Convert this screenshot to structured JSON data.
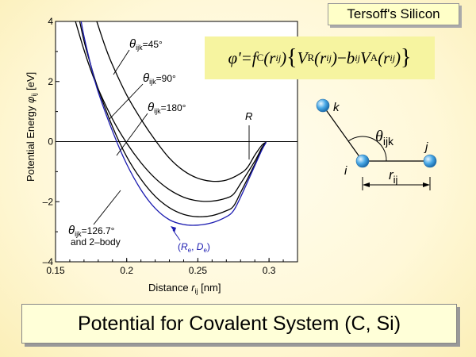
{
  "slide": {
    "label": "Tersoff's Silicon",
    "footer": "Potential for Covalent System (C, Si)"
  },
  "formula": {
    "phi": "φ'",
    "eq": " = ",
    "fc": "f",
    "fc_sub": "C",
    "rij": "(r",
    "ij": "ij",
    "open": ")",
    "brace_open": "{",
    "V": "V",
    "VR_sub": "R",
    "minus": " − ",
    "b": "b",
    "VA_sub": "A",
    "brace_close": "}"
  },
  "colors": {
    "curve": "#000000",
    "curve_2body": "#1a1ab0",
    "atom": "#49a9e6",
    "label_blue": "#1a1ab0"
  },
  "chart_data": {
    "type": "line",
    "xlabel": "Distance r_ij [nm]",
    "xlabel_main": "Distance ",
    "xlabel_var": "r",
    "xlabel_sub": "ij",
    "xlabel_unit": " [nm]",
    "ylabel": "Potential Energy φij [eV]",
    "ylabel_main": "Potential Energy  ",
    "ylabel_var": "φ",
    "ylabel_sub": "ij",
    "ylabel_unit": " [eV]",
    "xlim": [
      0.15,
      0.32
    ],
    "ylim": [
      -4,
      4
    ],
    "xticks": [
      0.15,
      0.2,
      0.25,
      0.3
    ],
    "xtick_labels": [
      "0.15",
      "0.2",
      "0.25",
      "0.3"
    ],
    "yticks": [
      4,
      2,
      0,
      -2,
      -4
    ],
    "ytick_labels": [
      "4",
      "2",
      "0",
      "–2",
      "–4"
    ],
    "series": [
      {
        "name": "θijk=45°",
        "x": [
          0.179,
          0.185,
          0.19,
          0.2,
          0.21,
          0.22,
          0.23,
          0.24,
          0.25,
          0.26,
          0.27,
          0.28,
          0.285,
          0.29,
          0.295,
          0.298
        ],
        "y": [
          4.0,
          3.15,
          2.55,
          1.55,
          0.75,
          0.05,
          -0.55,
          -0.97,
          -1.22,
          -1.32,
          -1.28,
          -1.06,
          -0.85,
          -0.45,
          -0.12,
          -0.02
        ]
      },
      {
        "name": "θijk=90°",
        "x": [
          0.164,
          0.17,
          0.175,
          0.18,
          0.19,
          0.2,
          0.21,
          0.22,
          0.23,
          0.24,
          0.25,
          0.26,
          0.27,
          0.275,
          0.28,
          0.29,
          0.295,
          0.298
        ],
        "y": [
          4.0,
          3.05,
          2.35,
          1.75,
          0.75,
          -0.05,
          -0.7,
          -1.22,
          -1.6,
          -1.85,
          -1.97,
          -1.98,
          -1.88,
          -1.75,
          -1.4,
          -0.65,
          -0.2,
          -0.02
        ]
      },
      {
        "name": "θijk=180°",
        "x": [
          0.167,
          0.17,
          0.175,
          0.18,
          0.19,
          0.2,
          0.21,
          0.22,
          0.23,
          0.24,
          0.25,
          0.26,
          0.27,
          0.275,
          0.28,
          0.29,
          0.295,
          0.298
        ],
        "y": [
          4.0,
          3.35,
          2.5,
          1.75,
          0.5,
          -0.5,
          -1.25,
          -1.82,
          -2.2,
          -2.42,
          -2.5,
          -2.46,
          -2.3,
          -2.15,
          -1.7,
          -0.75,
          -0.25,
          -0.02
        ]
      },
      {
        "name": "θijk=126.7° and 2–body",
        "x": [
          0.168,
          0.17,
          0.175,
          0.18,
          0.19,
          0.2,
          0.21,
          0.22,
          0.23,
          0.24,
          0.25,
          0.26,
          0.27,
          0.275,
          0.28,
          0.29,
          0.295,
          0.298
        ],
        "y": [
          4.0,
          3.5,
          2.5,
          1.65,
          0.35,
          -0.75,
          -1.6,
          -2.22,
          -2.6,
          -2.76,
          -2.78,
          -2.7,
          -2.5,
          -2.3,
          -1.85,
          -0.8,
          -0.28,
          -0.02
        ]
      }
    ],
    "annotations": {
      "theta_sym": "θ",
      "ijk": "ijk",
      "t45": "=45°",
      "t90": "=90°",
      "t180": "=180°",
      "t1267": "=126.7°",
      "two_body": "and 2–body",
      "R": "R",
      "Re_De_open": "(",
      "Re": "R",
      "Re_sub": "e",
      "comma": ", ",
      "De": "D",
      "De_sub": "e",
      "Re_De_close": ")"
    }
  },
  "diagram": {
    "k": "k",
    "i": "i",
    "j": "j",
    "theta": "θ",
    "ijk": "ijk",
    "r": "r",
    "ij": "ij"
  }
}
